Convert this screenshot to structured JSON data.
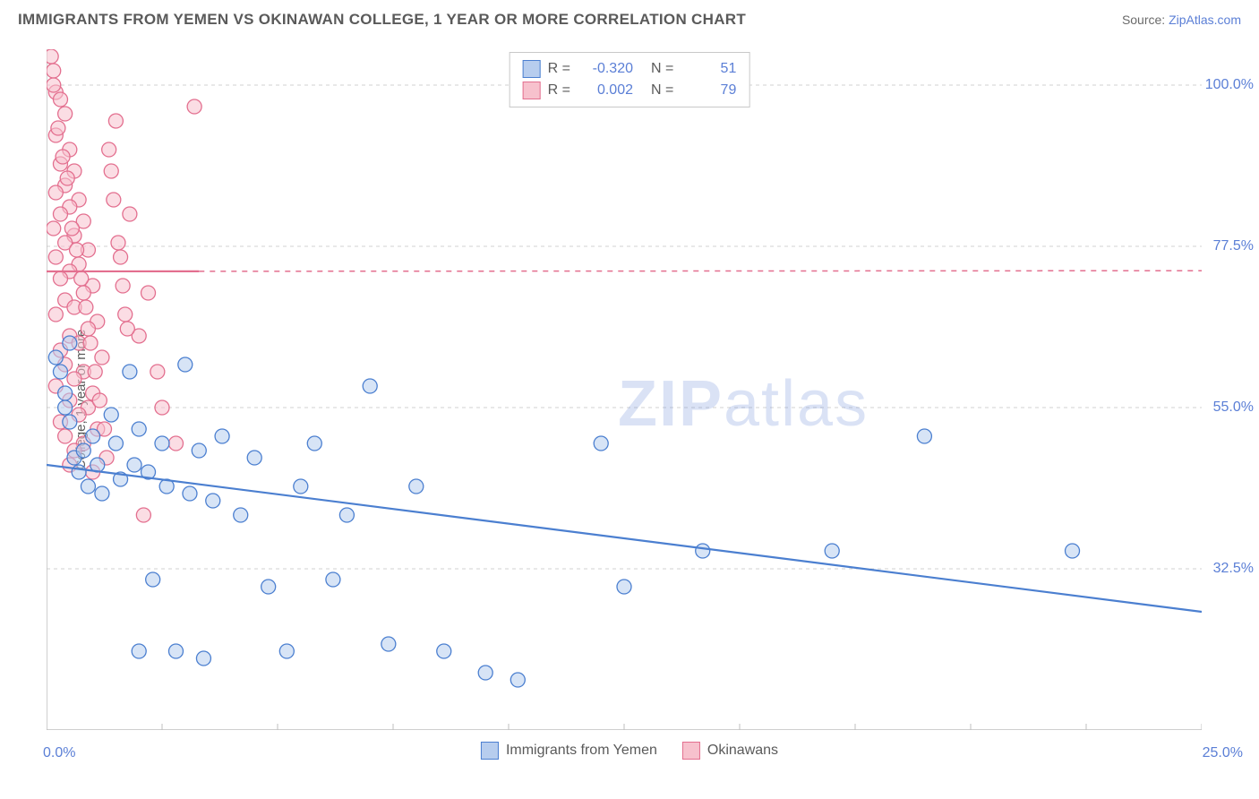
{
  "header": {
    "title": "IMMIGRANTS FROM YEMEN VS OKINAWAN COLLEGE, 1 YEAR OR MORE CORRELATION CHART",
    "source_label": "Source:",
    "source_link": "ZipAtlas.com"
  },
  "chart": {
    "type": "scatter",
    "ylabel": "College, 1 year or more",
    "xlim": [
      0,
      25
    ],
    "ylim": [
      10,
      105
    ],
    "background_color": "#ffffff",
    "grid_color": "#d0d0d0",
    "axis_color": "#bfbfbf",
    "tick_color": "#5b7fd6",
    "y_ticks": [
      {
        "val": 100.0,
        "label": "100.0%"
      },
      {
        "val": 77.5,
        "label": "77.5%"
      },
      {
        "val": 55.0,
        "label": "55.0%"
      },
      {
        "val": 32.5,
        "label": "32.5%"
      }
    ],
    "x_ticks_bottom": {
      "left": "0.0%",
      "right": "25.0%"
    },
    "marker_radius": 8,
    "marker_stroke_width": 1.3,
    "trendline_width": 2.2,
    "series": [
      {
        "name": "Immigrants from Yemen",
        "fill": "#b7cdee",
        "stroke": "#4b7fd0",
        "fill_opacity": 0.55,
        "r_value": "-0.320",
        "n_value": "51",
        "trend": {
          "x1": 0.0,
          "y1": 47.0,
          "x2": 25.0,
          "y2": 26.5,
          "solid_until_x": 25.0
        },
        "points": [
          [
            0.2,
            62
          ],
          [
            0.3,
            60
          ],
          [
            0.4,
            57
          ],
          [
            0.4,
            55
          ],
          [
            0.5,
            53
          ],
          [
            0.5,
            64
          ],
          [
            0.6,
            48
          ],
          [
            0.7,
            46
          ],
          [
            0.8,
            49
          ],
          [
            0.9,
            44
          ],
          [
            1.0,
            51
          ],
          [
            1.1,
            47
          ],
          [
            1.2,
            43
          ],
          [
            1.4,
            54
          ],
          [
            1.5,
            50
          ],
          [
            1.6,
            45
          ],
          [
            1.8,
            60
          ],
          [
            1.9,
            47
          ],
          [
            2.0,
            52
          ],
          [
            2.0,
            21
          ],
          [
            2.2,
            46
          ],
          [
            2.3,
            31
          ],
          [
            2.5,
            50
          ],
          [
            2.6,
            44
          ],
          [
            2.8,
            21
          ],
          [
            3.0,
            61
          ],
          [
            3.1,
            43
          ],
          [
            3.3,
            49
          ],
          [
            3.4,
            20
          ],
          [
            3.6,
            42
          ],
          [
            3.8,
            51
          ],
          [
            4.2,
            40
          ],
          [
            4.5,
            48
          ],
          [
            4.8,
            30
          ],
          [
            5.2,
            21
          ],
          [
            5.5,
            44
          ],
          [
            5.8,
            50
          ],
          [
            6.2,
            31
          ],
          [
            6.5,
            40
          ],
          [
            7.0,
            58
          ],
          [
            7.4,
            22
          ],
          [
            8.0,
            44
          ],
          [
            9.5,
            18
          ],
          [
            10.2,
            17
          ],
          [
            12.0,
            50
          ],
          [
            12.5,
            30
          ],
          [
            14.2,
            35
          ],
          [
            17.0,
            35
          ],
          [
            19.0,
            51
          ],
          [
            22.2,
            35
          ],
          [
            8.6,
            21
          ]
        ]
      },
      {
        "name": "Okinawans",
        "fill": "#f7c1cd",
        "stroke": "#e36f8f",
        "fill_opacity": 0.55,
        "r_value": "0.002",
        "n_value": "79",
        "trend": {
          "x1": 0.0,
          "y1": 74.0,
          "x2": 25.0,
          "y2": 74.1,
          "solid_until_x": 3.3
        },
        "points": [
          [
            0.1,
            104
          ],
          [
            0.15,
            102
          ],
          [
            0.2,
            99
          ],
          [
            0.3,
            98
          ],
          [
            0.4,
            96
          ],
          [
            0.2,
            93
          ],
          [
            0.5,
            91
          ],
          [
            0.3,
            89
          ],
          [
            0.6,
            88
          ],
          [
            0.4,
            86
          ],
          [
            0.2,
            85
          ],
          [
            0.7,
            84
          ],
          [
            0.5,
            83
          ],
          [
            0.3,
            82
          ],
          [
            0.8,
            81
          ],
          [
            0.15,
            80
          ],
          [
            0.6,
            79
          ],
          [
            0.4,
            78
          ],
          [
            0.9,
            77
          ],
          [
            0.2,
            76
          ],
          [
            0.7,
            75
          ],
          [
            0.5,
            74
          ],
          [
            0.3,
            73
          ],
          [
            1.0,
            72
          ],
          [
            0.8,
            71
          ],
          [
            0.4,
            70
          ],
          [
            0.6,
            69
          ],
          [
            0.2,
            68
          ],
          [
            1.1,
            67
          ],
          [
            0.9,
            66
          ],
          [
            0.5,
            65
          ],
          [
            0.7,
            64
          ],
          [
            0.3,
            63
          ],
          [
            1.2,
            62
          ],
          [
            0.4,
            61
          ],
          [
            0.8,
            60
          ],
          [
            0.6,
            59
          ],
          [
            0.2,
            58
          ],
          [
            1.0,
            57
          ],
          [
            0.5,
            56
          ],
          [
            0.9,
            55
          ],
          [
            0.7,
            54
          ],
          [
            0.3,
            53
          ],
          [
            1.1,
            52
          ],
          [
            0.4,
            51
          ],
          [
            0.8,
            50
          ],
          [
            0.6,
            49
          ],
          [
            1.3,
            48
          ],
          [
            0.5,
            47
          ],
          [
            1.0,
            46
          ],
          [
            1.5,
            95
          ],
          [
            1.8,
            82
          ],
          [
            2.2,
            71
          ],
          [
            1.4,
            88
          ],
          [
            1.6,
            76
          ],
          [
            2.0,
            65
          ],
          [
            2.5,
            55
          ],
          [
            1.7,
            68
          ],
          [
            2.8,
            50
          ],
          [
            3.2,
            97
          ],
          [
            0.15,
            100
          ],
          [
            0.25,
            94
          ],
          [
            0.35,
            90
          ],
          [
            0.45,
            87
          ],
          [
            0.55,
            80
          ],
          [
            0.65,
            77
          ],
          [
            0.75,
            73
          ],
          [
            0.85,
            69
          ],
          [
            0.95,
            64
          ],
          [
            1.05,
            60
          ],
          [
            1.15,
            56
          ],
          [
            1.25,
            52
          ],
          [
            1.35,
            91
          ],
          [
            1.45,
            84
          ],
          [
            1.55,
            78
          ],
          [
            1.65,
            72
          ],
          [
            1.75,
            66
          ],
          [
            2.1,
            40
          ],
          [
            2.4,
            60
          ]
        ]
      }
    ]
  },
  "legend_top": {
    "r_label": "R =",
    "n_label": "N ="
  },
  "legend_bottom": {
    "items": [
      "Immigrants from Yemen",
      "Okinawans"
    ]
  },
  "watermark": {
    "zip": "ZIP",
    "atlas": "atlas"
  }
}
